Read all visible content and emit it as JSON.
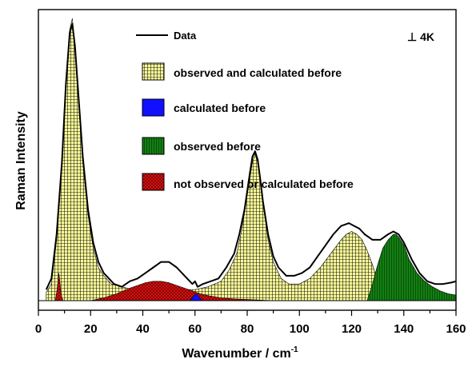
{
  "chart_data": {
    "type": "area",
    "xlabel": "Wavenumber / cm",
    "xlabel_sup": "-1",
    "ylabel": "Raman Intensity",
    "xlim": [
      0,
      160
    ],
    "ylim": [
      0,
      1.0
    ],
    "x_ticks": [
      0,
      20,
      40,
      60,
      80,
      100,
      120,
      140,
      160
    ],
    "x_tick_labels": [
      "0",
      "20",
      "40",
      "60",
      "80",
      "100",
      "120",
      "140",
      "160"
    ],
    "grid": false,
    "legend_position": "top-center",
    "condition_label": "⊥  4K",
    "colors": {
      "yellow": "#ffff99",
      "blue": "#1010ff",
      "green": "#118011",
      "red": "#ee1111",
      "data_line": "#000000"
    },
    "legend": [
      {
        "label": "Data",
        "kind": "line",
        "color": "#000000"
      },
      {
        "label": "observed and calculated before",
        "kind": "box",
        "color": "#ffff99"
      },
      {
        "label": "calculated before",
        "kind": "box",
        "color": "#1010ff"
      },
      {
        "label": "observed before",
        "kind": "box",
        "color": "#118011"
      },
      {
        "label": "not observed or calculated before",
        "kind": "box",
        "color": "#ee1111"
      }
    ],
    "series": [
      {
        "name": "Data",
        "kind": "line",
        "x": [
          3,
          5,
          7,
          9,
          10.5,
          12,
          13,
          14,
          15.5,
          17,
          19,
          21,
          23,
          25,
          27,
          29,
          32,
          35,
          38,
          41,
          44,
          47,
          50,
          53,
          56,
          59,
          60,
          61,
          63,
          66,
          69,
          72,
          75,
          77,
          79,
          81,
          82,
          83,
          84,
          85,
          86,
          88,
          90,
          92,
          95,
          98,
          101,
          104,
          107,
          110,
          113,
          116,
          119,
          121,
          123,
          125,
          128,
          131,
          134,
          136,
          138,
          140,
          143,
          146,
          149,
          152,
          155,
          158,
          160
        ],
        "y": [
          0.04,
          0.08,
          0.24,
          0.5,
          0.78,
          0.97,
          1.0,
          0.92,
          0.72,
          0.52,
          0.33,
          0.21,
          0.14,
          0.1,
          0.08,
          0.06,
          0.05,
          0.07,
          0.08,
          0.1,
          0.12,
          0.14,
          0.14,
          0.12,
          0.09,
          0.06,
          0.07,
          0.05,
          0.06,
          0.07,
          0.08,
          0.12,
          0.17,
          0.24,
          0.33,
          0.46,
          0.52,
          0.54,
          0.51,
          0.44,
          0.36,
          0.24,
          0.16,
          0.12,
          0.09,
          0.09,
          0.1,
          0.12,
          0.16,
          0.2,
          0.24,
          0.27,
          0.28,
          0.27,
          0.26,
          0.24,
          0.22,
          0.22,
          0.24,
          0.25,
          0.24,
          0.21,
          0.15,
          0.1,
          0.07,
          0.06,
          0.06,
          0.065,
          0.07
        ]
      },
      {
        "name": "observed and calculated before",
        "kind": "fill",
        "color_key": "yellow",
        "x": [
          3,
          5,
          7,
          9,
          10.5,
          12,
          13,
          14,
          15.5,
          17,
          19,
          21,
          23,
          25,
          28,
          32,
          36,
          40,
          45,
          50,
          55,
          60,
          65,
          70,
          73,
          76,
          78,
          80,
          82,
          83,
          84,
          86,
          88,
          90,
          93,
          96,
          100,
          104,
          108,
          112,
          116,
          118,
          120,
          122,
          124,
          126,
          128,
          130,
          131
        ],
        "y": [
          0.03,
          0.06,
          0.22,
          0.48,
          0.77,
          0.98,
          1.02,
          0.93,
          0.72,
          0.5,
          0.31,
          0.19,
          0.12,
          0.09,
          0.06,
          0.05,
          0.04,
          0.04,
          0.04,
          0.04,
          0.04,
          0.04,
          0.05,
          0.07,
          0.11,
          0.17,
          0.26,
          0.38,
          0.5,
          0.53,
          0.5,
          0.36,
          0.22,
          0.14,
          0.08,
          0.06,
          0.06,
          0.08,
          0.12,
          0.17,
          0.22,
          0.24,
          0.25,
          0.24,
          0.22,
          0.18,
          0.13,
          0.07,
          0.0
        ]
      },
      {
        "name": "observed before",
        "kind": "fill",
        "color_key": "green",
        "x": [
          126,
          128,
          130,
          132,
          134,
          136,
          137,
          138,
          140,
          142,
          145,
          148,
          151,
          154,
          157,
          160
        ],
        "y": [
          0.0,
          0.06,
          0.13,
          0.19,
          0.22,
          0.24,
          0.24,
          0.23,
          0.2,
          0.15,
          0.1,
          0.07,
          0.05,
          0.035,
          0.025,
          0.02
        ]
      },
      {
        "name": "not observed or calculated before",
        "kind": "fill",
        "color_key": "red",
        "x": [
          20,
          25,
          30,
          35,
          38,
          41,
          44,
          47,
          50,
          53,
          56,
          59,
          62,
          65,
          70,
          75,
          80,
          85,
          90
        ],
        "y": [
          0.0,
          0.01,
          0.025,
          0.045,
          0.055,
          0.065,
          0.07,
          0.07,
          0.065,
          0.055,
          0.045,
          0.035,
          0.025,
          0.018,
          0.01,
          0.006,
          0.004,
          0.002,
          0.0
        ]
      },
      {
        "name": "not observed or calculated before",
        "kind": "fill",
        "color_key": "red",
        "x": [
          6.5,
          7.0,
          7.5,
          7.8,
          8.1,
          8.5,
          9.0,
          9.5
        ],
        "y": [
          0.0,
          0.03,
          0.07,
          0.1,
          0.08,
          0.04,
          0.01,
          0.0
        ]
      },
      {
        "name": "calculated before",
        "kind": "fill",
        "color_key": "blue",
        "x": [
          58,
          59,
          60,
          61,
          62,
          63
        ],
        "y": [
          0.0,
          0.01,
          0.025,
          0.02,
          0.008,
          0.0
        ]
      }
    ]
  }
}
